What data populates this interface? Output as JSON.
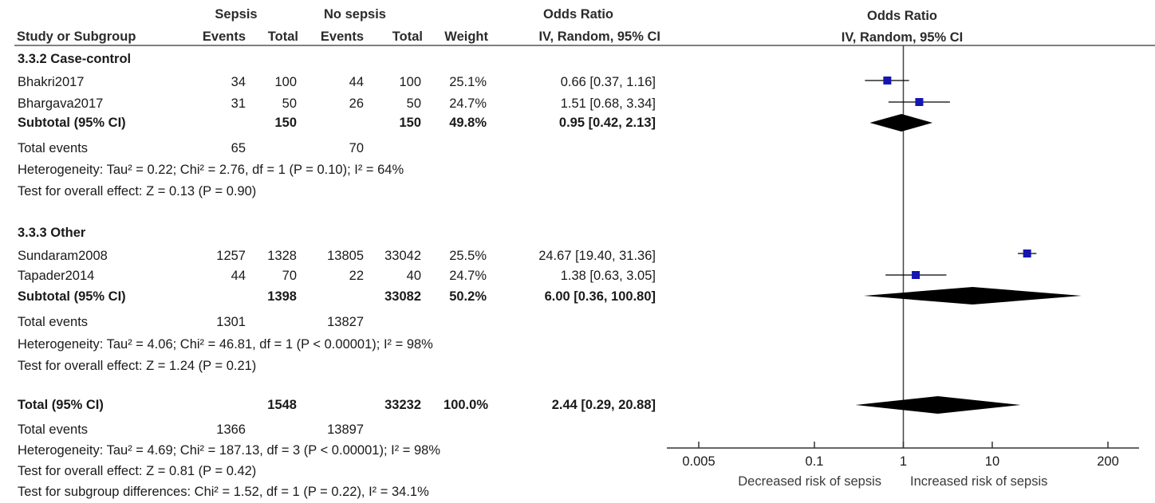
{
  "header": {
    "study_col": "Study or Subgroup",
    "group1": "Sepsis",
    "group2": "No sepsis",
    "events": "Events",
    "total": "Total",
    "weight": "Weight",
    "effect_title": "Odds Ratio",
    "effect_method": "IV, Random, 95% CI",
    "plot_title": "Odds Ratio",
    "plot_method": "IV, Random, 95% CI"
  },
  "subgroups": [
    {
      "title": "3.3.2 Case-control",
      "studies": [
        {
          "name": "Bhakri2017",
          "e1": "34",
          "t1": "100",
          "e2": "44",
          "t2": "100",
          "weight": "25.1%",
          "ci": "0.66 [0.37, 1.16]"
        },
        {
          "name": "Bhargava2017",
          "e1": "31",
          "t1": "50",
          "e2": "26",
          "t2": "50",
          "weight": "24.7%",
          "ci": "1.51 [0.68, 3.34]"
        }
      ],
      "subtotal": {
        "label": "Subtotal (95% CI)",
        "t1": "150",
        "t2": "150",
        "weight": "49.8%",
        "ci": "0.95 [0.42, 2.13]"
      },
      "events": {
        "label": "Total events",
        "e1": "65",
        "e2": "70"
      },
      "heterogeneity": "Heterogeneity: Tau² = 0.22; Chi² = 2.76, df = 1 (P = 0.10); I² = 64%",
      "overall": "Test for overall effect: Z = 0.13 (P = 0.90)"
    },
    {
      "title": "3.3.3 Other",
      "studies": [
        {
          "name": "Sundaram2008",
          "e1": "1257",
          "t1": "1328",
          "e2": "13805",
          "t2": "33042",
          "weight": "25.5%",
          "ci": "24.67 [19.40, 31.36]"
        },
        {
          "name": "Tapader2014",
          "e1": "44",
          "t1": "70",
          "e2": "22",
          "t2": "40",
          "weight": "24.7%",
          "ci": "1.38 [0.63, 3.05]"
        }
      ],
      "subtotal": {
        "label": "Subtotal (95% CI)",
        "t1": "1398",
        "t2": "33082",
        "weight": "50.2%",
        "ci": "6.00 [0.36, 100.80]"
      },
      "events": {
        "label": "Total events",
        "e1": "1301",
        "e2": "13827"
      },
      "heterogeneity": "Heterogeneity: Tau² = 4.06; Chi² = 46.81, df = 1 (P < 0.00001); I² = 98%",
      "overall": "Test for overall effect: Z = 1.24 (P = 0.21)"
    }
  ],
  "total": {
    "label": "Total (95% CI)",
    "t1": "1548",
    "t2": "33232",
    "weight": "100.0%",
    "ci": "2.44 [0.29, 20.88]",
    "events_label": "Total events",
    "e1": "1366",
    "e2": "13897",
    "heterogeneity": "Heterogeneity: Tau² = 4.69; Chi² = 187.13, df = 3 (P < 0.00001); I² = 98%",
    "overall": "Test for overall effect: Z = 0.81 (P = 0.42)",
    "subgroup_diff": "Test for subgroup differences: Chi² = 1.52, df = 1 (P = 0.22), I² = 34.1%"
  },
  "colors": {
    "marker": "#1515b0",
    "diamond": "#000000",
    "text": "#1a1a1a"
  },
  "chart_data": {
    "type": "forest",
    "scale": "log",
    "xlim": [
      0.005,
      200
    ],
    "x_ticks": [
      0.005,
      0.1,
      1,
      10,
      200
    ],
    "x_tick_labels": [
      "0.005",
      "0.1",
      "1",
      "10",
      "200"
    ],
    "null_line": 1,
    "xlabel_left": "Decreased risk of sepsis",
    "xlabel_right": "Increased risk of sepsis",
    "studies": [
      {
        "name": "Bhakri2017",
        "or": 0.66,
        "lo": 0.37,
        "hi": 1.16,
        "weight": 25.1
      },
      {
        "name": "Bhargava2017",
        "or": 1.51,
        "lo": 0.68,
        "hi": 3.34,
        "weight": 24.7
      },
      {
        "name": "Sundaram2008",
        "or": 24.67,
        "lo": 19.4,
        "hi": 31.36,
        "weight": 25.5
      },
      {
        "name": "Tapader2014",
        "or": 1.38,
        "lo": 0.63,
        "hi": 3.05,
        "weight": 24.7
      }
    ],
    "diamonds": [
      {
        "name": "Subtotal 3.3.2 Case-control",
        "or": 0.95,
        "lo": 0.42,
        "hi": 2.13
      },
      {
        "name": "Subtotal 3.3.3 Other",
        "or": 6.0,
        "lo": 0.36,
        "hi": 100.8
      },
      {
        "name": "Total",
        "or": 2.44,
        "lo": 0.29,
        "hi": 20.88
      }
    ]
  }
}
